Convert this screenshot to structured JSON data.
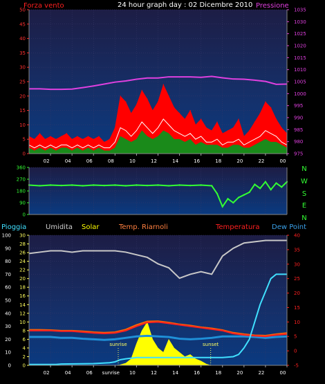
{
  "header": {
    "title": "24 hour graph day : 02 Dicembre 2010",
    "wind_label": "Forza vento",
    "pressure_label": "Pressione"
  },
  "legend2": {
    "rain": "Pioggia",
    "humidity": "Umidita",
    "solar": "Solar",
    "temp_heated": "Temp. Riarnoli",
    "temperature": "Temperatura",
    "dewpoint": "Dew Point"
  },
  "markers": {
    "sunrise": "sunrise",
    "sunset": "sunset"
  },
  "colors": {
    "wind_max": "#ff0000",
    "wind_avg": "#ffffff",
    "wind_min": "#1a8a1a",
    "pressure": "#e040e0",
    "direction": "#33ff33",
    "humidity": "#c8c8c8",
    "solar": "#ffff00",
    "temperature": "#ff2020",
    "temp_heated": "#ff6600",
    "dewpoint": "#1f90d8",
    "rain": "#40e0ff",
    "panel_bg_top": "#1a1a40",
    "panel_bg_bottom": "#0a2a6a"
  },
  "chart_data": [
    {
      "type": "line",
      "name": "wind_pressure",
      "x_tick_labels": [
        "02",
        "04",
        "06",
        "08",
        "10",
        "12",
        "14",
        "16",
        "18",
        "20",
        "22",
        "00"
      ],
      "left_axis": {
        "ticks": [
          0,
          5,
          10,
          15,
          20,
          25,
          30,
          35,
          40,
          45,
          50
        ],
        "ylim": [
          0,
          50
        ]
      },
      "right_axis": {
        "ticks": [
          975,
          980,
          985,
          990,
          995,
          1000,
          1005,
          1010,
          1015,
          1020,
          1025,
          1030,
          1035
        ],
        "ylim": [
          975,
          1035
        ]
      },
      "series": [
        {
          "name": "Pressione",
          "axis": "right",
          "x": [
            0,
            1,
            2,
            3,
            4,
            5,
            6,
            7,
            8,
            9,
            10,
            11,
            12,
            13,
            14,
            15,
            16,
            17,
            18,
            19,
            20,
            21,
            22,
            23,
            24
          ],
          "y": [
            1002,
            1002,
            1001.8,
            1001.8,
            1001.9,
            1002.5,
            1003.2,
            1004,
            1004.8,
            1005.3,
            1006,
            1006.5,
            1006.5,
            1007,
            1007,
            1007,
            1006.8,
            1007.2,
            1006.6,
            1006.1,
            1006,
            1005.6,
            1005.1,
            1003.9,
            1004
          ]
        },
        {
          "name": "Forza vento",
          "axis": "left",
          "x": [
            0,
            0.5,
            1,
            1.5,
            2,
            2.5,
            3,
            3.5,
            4,
            4.5,
            5,
            5.5,
            6,
            6.5,
            7,
            7.5,
            8,
            8.5,
            9,
            9.5,
            10,
            10.5,
            11,
            11.5,
            12,
            12.5,
            13,
            13.5,
            14,
            14.5,
            15,
            15.5,
            16,
            16.5,
            17,
            17.5,
            18,
            18.5,
            19,
            19.5,
            20,
            20.5,
            21,
            21.5,
            22,
            22.5,
            23,
            23.5,
            24
          ],
          "max": [
            6,
            5,
            7,
            5,
            6,
            5,
            6,
            7,
            5,
            6,
            5,
            6,
            5,
            6,
            4,
            5,
            9,
            20,
            18,
            14,
            17,
            22,
            19,
            15,
            18,
            24,
            20,
            16,
            14,
            12,
            15,
            10,
            12,
            9,
            8,
            11,
            7,
            8,
            9,
            12,
            6,
            8,
            11,
            14,
            18,
            16,
            12,
            9,
            7
          ],
          "avg": [
            3,
            2,
            3,
            2,
            3,
            2,
            3,
            3,
            2,
            3,
            2,
            3,
            2,
            3,
            2,
            2,
            4,
            9,
            8,
            6,
            8,
            11,
            9,
            7,
            9,
            12,
            10,
            8,
            7,
            6,
            7,
            5,
            6,
            4,
            4,
            5,
            3,
            4,
            4,
            5,
            3,
            4,
            5,
            6,
            8,
            7,
            6,
            4,
            3
          ],
          "min": [
            2,
            1,
            2,
            1,
            2,
            1,
            2,
            2,
            1,
            2,
            1,
            2,
            1,
            2,
            1,
            1,
            2,
            6,
            5,
            4,
            5,
            8,
            6,
            5,
            6,
            8,
            7,
            5,
            5,
            4,
            5,
            3,
            4,
            3,
            3,
            3,
            2,
            2,
            3,
            3,
            2,
            2,
            3,
            4,
            5,
            4,
            4,
            3,
            2
          ]
        }
      ]
    },
    {
      "type": "scatter",
      "name": "wind_direction",
      "x_tick_labels": [],
      "left_axis": {
        "ticks": [
          0,
          90,
          180,
          270,
          360
        ],
        "ylim": [
          0,
          360
        ]
      },
      "right_labels": [
        "N",
        "W",
        "S",
        "E",
        "N"
      ],
      "series": [
        {
          "name": "direction",
          "x": [
            0,
            1,
            2,
            3,
            4,
            5,
            6,
            7,
            8,
            9,
            10,
            11,
            12,
            13,
            14,
            15,
            16,
            17,
            17.5,
            18,
            18.5,
            19,
            19.5,
            20,
            20.5,
            21,
            21.5,
            22,
            22.5,
            23,
            23.5,
            24
          ],
          "y": [
            225,
            220,
            225,
            222,
            225,
            220,
            225,
            222,
            225,
            220,
            225,
            222,
            225,
            220,
            225,
            222,
            225,
            220,
            160,
            60,
            120,
            90,
            130,
            150,
            170,
            230,
            200,
            250,
            190,
            240,
            210,
            250
          ]
        }
      ]
    },
    {
      "type": "line",
      "name": "temp_hum_solar_rain",
      "x_tick_labels": [
        "02",
        "04",
        "06",
        "sunrise",
        "10",
        "12",
        "14",
        "16",
        "18",
        "20",
        "22",
        "00"
      ],
      "rain_axis": {
        "ticks": [
          0,
          10,
          20,
          30,
          40,
          50,
          60,
          70,
          80,
          90,
          100
        ],
        "ylim": [
          0,
          100
        ]
      },
      "humidity_axis": {
        "ticks": [
          0,
          2,
          4,
          6,
          8,
          10,
          12,
          14,
          16,
          18,
          20,
          22,
          24,
          26,
          28,
          30
        ],
        "ylim": [
          0,
          30
        ]
      },
      "temperature_axis": {
        "ticks": [
          -5,
          0,
          5,
          10,
          15,
          20,
          25,
          30,
          35,
          40
        ],
        "ylim": [
          -5,
          40
        ]
      },
      "sunrise_hour": 8.3,
      "sunset_hour": 16.9,
      "series": [
        {
          "name": "Umidita",
          "axis": "rain",
          "x": [
            0,
            1,
            2,
            3,
            4,
            5,
            6,
            7,
            8,
            9,
            10,
            11,
            12,
            13,
            14,
            15,
            16,
            17,
            18,
            19,
            20,
            21,
            22,
            23,
            24
          ],
          "y": [
            86,
            87,
            88,
            88,
            87,
            88,
            88,
            88,
            88,
            87,
            85,
            83,
            78,
            75,
            67,
            70,
            72,
            70,
            84,
            90,
            94,
            95,
            96,
            96,
            96
          ]
        },
        {
          "name": "Solar",
          "axis": "humidity",
          "x": [
            8.3,
            9,
            9.5,
            10,
            10.5,
            11,
            11.5,
            12,
            12.5,
            13,
            13.5,
            14,
            14.5,
            15,
            15.5,
            16,
            16.5,
            16.9
          ],
          "y": [
            0,
            0.5,
            1.5,
            5,
            8,
            10,
            6,
            4,
            3,
            6,
            4,
            3,
            2,
            2.5,
            1.5,
            1,
            0.3,
            0
          ]
        },
        {
          "name": "Temperatura",
          "axis": "temperature",
          "x": [
            0,
            1,
            2,
            3,
            4,
            5,
            6,
            7,
            8,
            9,
            10,
            11,
            12,
            13,
            14,
            15,
            16,
            17,
            18,
            19,
            20,
            21,
            22,
            23,
            24
          ],
          "y": [
            7,
            7,
            7,
            6.8,
            6.8,
            6.5,
            6.2,
            6,
            6.2,
            7,
            8.5,
            9.8,
            10,
            9.5,
            9,
            8.5,
            8,
            7.5,
            7,
            6,
            5.5,
            5.2,
            5,
            5.5,
            5.8
          ]
        },
        {
          "name": "Temp. Riarnoli",
          "axis": "temperature",
          "x": [
            0,
            1,
            2,
            3,
            4,
            5,
            6,
            7,
            8,
            9,
            10,
            11,
            12,
            13,
            14,
            15,
            16,
            17,
            18,
            19,
            20,
            21,
            22,
            23,
            24
          ],
          "y": [
            7.3,
            7.3,
            7.2,
            7,
            7,
            6.8,
            6.5,
            6.3,
            6.5,
            7.4,
            9,
            10.2,
            10.3,
            9.8,
            9.2,
            8.8,
            8.2,
            7.8,
            7.2,
            6.3,
            5.8,
            5.4,
            5.3,
            5.8,
            6.2
          ]
        },
        {
          "name": "Dew Point",
          "axis": "temperature",
          "x": [
            0,
            1,
            2,
            3,
            4,
            5,
            6,
            7,
            8,
            9,
            10,
            11,
            12,
            13,
            14,
            15,
            16,
            17,
            18,
            19,
            20,
            21,
            22,
            23,
            24
          ],
          "y": [
            4.8,
            4.8,
            4.8,
            4.5,
            4.5,
            4.2,
            4,
            3.8,
            4,
            4.5,
            5,
            5.2,
            5,
            4.8,
            4.2,
            4,
            4.2,
            4.5,
            5,
            5,
            5,
            4.8,
            4.5,
            4.8,
            5
          ]
        },
        {
          "name": "Pioggia",
          "axis": "humidity",
          "x": [
            0,
            2.5,
            3,
            6,
            7.5,
            8,
            8.5,
            9,
            10,
            12,
            14,
            16,
            18,
            19,
            19.5,
            20,
            20.5,
            21,
            21.5,
            22,
            22.5,
            23,
            24
          ],
          "y": [
            0.2,
            0.2,
            0.3,
            0.4,
            0.6,
            0.8,
            1.3,
            1.5,
            1.8,
            1.8,
            1.8,
            1.8,
            1.8,
            2,
            2.5,
            4,
            6,
            10,
            14,
            17,
            20,
            21,
            21
          ]
        }
      ]
    }
  ]
}
